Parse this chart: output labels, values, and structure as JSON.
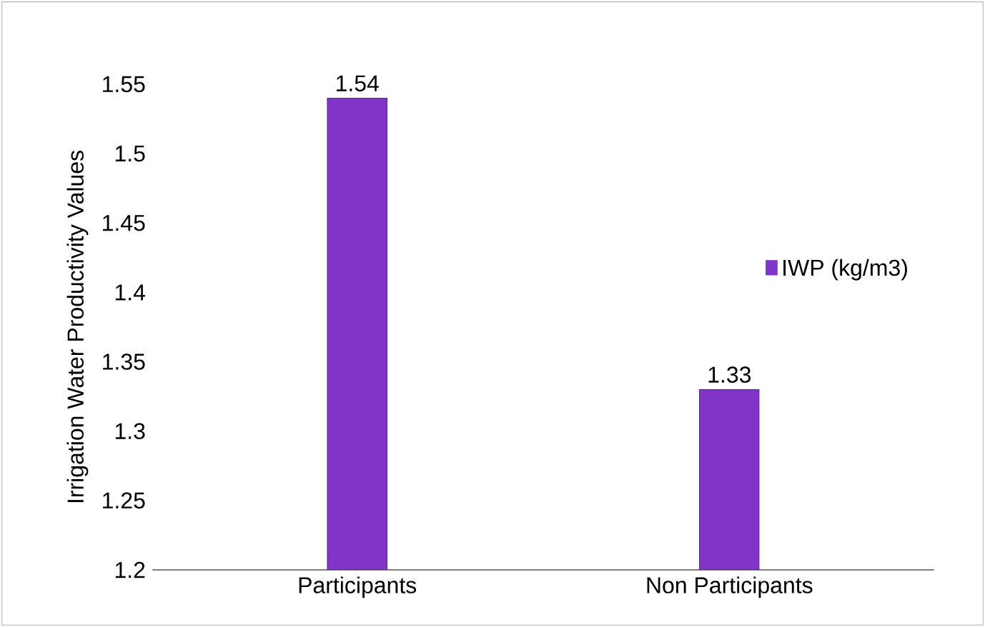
{
  "chart_data": {
    "type": "bar",
    "ylabel": "Irrigation Water Productivity Values",
    "categories": [
      "Participants",
      "Non Participants"
    ],
    "series": [
      {
        "name": "IWP (kg/m3)",
        "color": "#8035c8",
        "values": [
          1.54,
          1.33
        ]
      }
    ],
    "ylim": [
      1.2,
      1.55
    ],
    "yticks": [
      1.2,
      1.25,
      1.3,
      1.35,
      1.4,
      1.45,
      1.5,
      1.55
    ],
    "data_labels": true,
    "legend": "right",
    "grid": false
  }
}
